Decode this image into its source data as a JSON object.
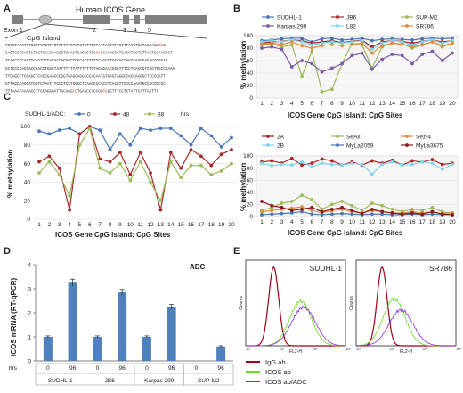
{
  "panels": {
    "A": "A",
    "B": "B",
    "C": "C",
    "D": "D",
    "E": "E"
  },
  "gene_map": {
    "title": "Human ICOS Gene",
    "exon_label": "Exon 1",
    "exon_numbers": [
      "2",
      "3",
      "4",
      "5"
    ],
    "cpg_label": "CpG Island",
    "sequence": [
      {
        "pre": "TCCCTATCTCTCCCTCTGTTTCTCTTTTCTGTGTGTTTCTATTAATTTTGTTTATCTCATAGGAGC",
        "m1": "CG",
        "post": "G"
      },
      {
        "pre": "GAGTCCTCACTGTCCTC",
        "m1": "CG",
        "mid": "CCAGGCTGGAGTGACAGTGG",
        "m2": "CG",
        "post": "CCAAAGCCTCAGCTCGTCTTACTGCAACCCT"
      },
      {
        "pre": "TCAACCCCAGTTGAGTTGGACACCAGGGCTGGCATATTTTCAGGCTGGCACCAGCCAAGGAGAGGGGGAG",
        "m1": "",
        "post": ""
      },
      {
        "pre": "GCTCCCCACCACCCACCTGGCTAATTTTTTATTTTTTGTAGAGA",
        "m1": "CG",
        "post": "GGGTTTCCTCACCGTCGGTTGCCCAAA"
      },
      {
        "pre": "TTCAGCTTCCAGCTCACCGAACCCGGTGAGCAGGCCCACAATGTGAGTAGGCCACCAAGGCTCCCCATT",
        "m1": "",
        "post": ""
      },
      {
        "pre": "GTTAGCCAGGATGGTCTAATTTCCCTCCTGGGCTCAAGCCCACCTCACGTTCCCCAAATGCCGCCCCCC",
        "m1": "",
        "post": ""
      },
      {
        "pre": "TTTAAATAAAACCTTGCAGGGATTACAGG",
        "m1": "CG",
        "mid": "TGAGCCACCGC",
        "m2": "CG",
        "post": "GCTTTCCTCTATTCATTAATTT"
      }
    ]
  },
  "methylation_colors": {
    "blue": "#4a76b8",
    "red": "#a52a2a",
    "green": "#9cbb59",
    "purple": "#7d5aa5",
    "cyan": "#7fd5ee",
    "orange": "#e08c3c",
    "darkred": "#8b1a1a",
    "olive": "#8b8b36",
    "grey": "#bbbbbb"
  },
  "chart_data": [
    {
      "id": "B-top",
      "type": "line",
      "xlabel": "ICOS Gene CpG Island: CpG Sites",
      "ylabel": "% methylation",
      "x": [
        1,
        2,
        3,
        4,
        5,
        6,
        7,
        8,
        9,
        10,
        11,
        12,
        13,
        14,
        15,
        16,
        17,
        18,
        19,
        20
      ],
      "ylim": [
        0,
        100
      ],
      "yticks": [
        0,
        20,
        40,
        60,
        80,
        100
      ],
      "legend_position": "top",
      "series": [
        {
          "name": "SUDHL-1",
          "color": "#4a76b8",
          "values": [
            92,
            93,
            95,
            96,
            96,
            90,
            95,
            96,
            93,
            94,
            96,
            92,
            94,
            95,
            94,
            93,
            95,
            96,
            95,
            96
          ]
        },
        {
          "name": "JB6",
          "color": "#a52a2a",
          "values": [
            88,
            90,
            91,
            93,
            92,
            88,
            90,
            92,
            89,
            91,
            93,
            82,
            90,
            92,
            91,
            88,
            91,
            93,
            90,
            92
          ]
        },
        {
          "name": "SUP-M2",
          "color": "#9cbb59",
          "values": [
            85,
            87,
            82,
            85,
            35,
            75,
            10,
            14,
            55,
            88,
            85,
            48,
            82,
            88,
            87,
            80,
            85,
            90,
            82,
            88
          ]
        },
        {
          "name": "Karpas 299",
          "color": "#7d5aa5",
          "values": [
            80,
            82,
            78,
            50,
            60,
            55,
            42,
            48,
            55,
            68,
            72,
            46,
            62,
            70,
            68,
            55,
            70,
            75,
            60,
            72
          ]
        },
        {
          "name": "L82",
          "color": "#7fd5ee",
          "values": [
            90,
            92,
            90,
            93,
            90,
            85,
            88,
            90,
            88,
            90,
            92,
            78,
            88,
            92,
            90,
            85,
            90,
            93,
            88,
            92
          ]
        },
        {
          "name": "SR786",
          "color": "#e08c3c",
          "values": [
            86,
            88,
            86,
            90,
            84,
            80,
            84,
            86,
            84,
            86,
            88,
            72,
            84,
            88,
            86,
            82,
            86,
            90,
            84,
            88
          ]
        }
      ]
    },
    {
      "id": "B-bottom",
      "type": "line",
      "xlabel": "ICOS Gene CpG Island: CpG Sites",
      "ylabel": "% methylation",
      "x": [
        1,
        2,
        3,
        4,
        5,
        6,
        7,
        8,
        9,
        10,
        11,
        12,
        13,
        14,
        15,
        16,
        17,
        18,
        19,
        20
      ],
      "ylim": [
        0,
        100
      ],
      "yticks": [
        0,
        20,
        40,
        60,
        80,
        100
      ],
      "legend_position": "top",
      "series": [
        {
          "name": "2A",
          "color": "#b22222",
          "values": [
            90,
            92,
            88,
            96,
            85,
            88,
            95,
            92,
            85,
            90,
            85,
            92,
            88,
            93,
            85,
            92,
            90,
            94,
            86,
            88
          ]
        },
        {
          "name": "SeAx",
          "color": "#9cbb59",
          "values": [
            10,
            15,
            22,
            25,
            35,
            28,
            12,
            20,
            25,
            18,
            10,
            22,
            18,
            12,
            8,
            12,
            10,
            15,
            8,
            6
          ]
        },
        {
          "name": "Sez-4",
          "color": "#e08c3c",
          "values": [
            8,
            10,
            12,
            14,
            16,
            10,
            6,
            10,
            12,
            8,
            6,
            10,
            8,
            6,
            6,
            8,
            6,
            8,
            5,
            6
          ]
        },
        {
          "name": "2B",
          "color": "#7fd5ee",
          "values": [
            88,
            84,
            86,
            85,
            90,
            82,
            88,
            86,
            85,
            88,
            86,
            70,
            86,
            90,
            85,
            86,
            90,
            88,
            78,
            86
          ]
        },
        {
          "name": "MyLa2059",
          "color": "#4a76b8",
          "values": [
            3,
            4,
            5,
            6,
            8,
            4,
            3,
            4,
            5,
            4,
            3,
            4,
            4,
            3,
            3,
            4,
            3,
            4,
            3,
            3
          ]
        },
        {
          "name": "MyLa3675",
          "color": "#8b1a1a",
          "values": [
            25,
            18,
            15,
            10,
            12,
            15,
            8,
            12,
            15,
            10,
            5,
            12,
            8,
            6,
            4,
            6,
            4,
            8,
            4,
            3
          ]
        }
      ]
    },
    {
      "id": "C",
      "type": "line",
      "xlabel": "ICOS Gene CpG Island: CpG Sites",
      "ylabel": "% methylation",
      "x": [
        1,
        2,
        3,
        4,
        5,
        6,
        7,
        8,
        9,
        10,
        11,
        12,
        13,
        14,
        15,
        16,
        17,
        18,
        19,
        20
      ],
      "ylim": [
        0,
        100
      ],
      "yticks": [
        0,
        20,
        40,
        60,
        80,
        100
      ],
      "legend_title": "SUDHL-1/ADC:",
      "legend_unit": "hrs",
      "series": [
        {
          "name": "0",
          "color": "#4a76b8",
          "values": [
            95,
            92,
            96,
            98,
            92,
            100,
            96,
            75,
            92,
            80,
            98,
            96,
            98,
            98,
            90,
            80,
            98,
            90,
            78,
            88
          ]
        },
        {
          "name": "48",
          "color": "#a52a2a",
          "values": [
            62,
            68,
            55,
            10,
            92,
            100,
            65,
            62,
            72,
            48,
            72,
            50,
            10,
            72,
            55,
            75,
            68,
            58,
            70,
            75
          ]
        },
        {
          "name": "88",
          "color": "#9cbb59",
          "values": [
            50,
            62,
            48,
            25,
            80,
            98,
            55,
            50,
            60,
            42,
            62,
            40,
            20,
            62,
            45,
            58,
            58,
            48,
            52,
            60
          ]
        }
      ]
    },
    {
      "id": "D",
      "type": "bar",
      "title": "ADC",
      "ylabel": "ICOS mRNA (RT-qPCR)",
      "ylim": [
        0,
        4
      ],
      "yticks": [
        0,
        1,
        2,
        3,
        4
      ],
      "bar_color": "#4f81bd",
      "x_row_label": "hrs",
      "hours": [
        "0",
        "96",
        "0",
        "96",
        "0",
        "96",
        "0",
        "96"
      ],
      "groups": [
        "SUDHL-1",
        "JB6",
        "Karpas 299",
        "SUP-M2"
      ],
      "values": [
        1.0,
        3.25,
        1.0,
        2.85,
        1.0,
        2.25,
        0.0,
        0.6
      ],
      "errors": [
        0.04,
        0.15,
        0.04,
        0.12,
        0.04,
        0.1,
        0,
        0.03
      ]
    },
    {
      "id": "E",
      "type": "area",
      "histograms": [
        {
          "title": "SUDHL-1",
          "xlabel": "FL2-H",
          "ylabel": "Counts",
          "xticks": [
            "10°",
            "10¹",
            "10²",
            "10³"
          ],
          "peaks": {
            "igg": 0.28,
            "icos": 0.55,
            "icos_adc": 0.58
          }
        },
        {
          "title": "SR786",
          "xlabel": "FL2-H",
          "ylabel": "Counts",
          "xticks": [
            "10°",
            "10¹",
            "10²",
            "10³"
          ],
          "peaks": {
            "igg": 0.26,
            "icos": 0.38,
            "icos_adc": 0.45
          }
        }
      ],
      "legend": [
        {
          "name": "IgG ab",
          "color": "#a00018"
        },
        {
          "name": "ICOS ab",
          "color": "#66dd22"
        },
        {
          "name": "ICOS ab/ADC",
          "color": "#8a2be2"
        }
      ]
    }
  ]
}
